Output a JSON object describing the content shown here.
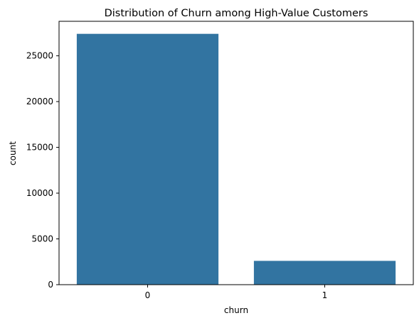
{
  "chart_data": {
    "type": "bar",
    "title": "Distribution of Churn among High-Value Customers",
    "xlabel": "churn",
    "ylabel": "count",
    "categories": [
      "0",
      "1"
    ],
    "values": [
      27400,
      2600
    ],
    "ylim": [
      0,
      28770
    ],
    "yticks": [
      0,
      5000,
      10000,
      15000,
      20000,
      25000
    ],
    "grid": false,
    "legend": "none",
    "bar_color": "#3274a1"
  }
}
